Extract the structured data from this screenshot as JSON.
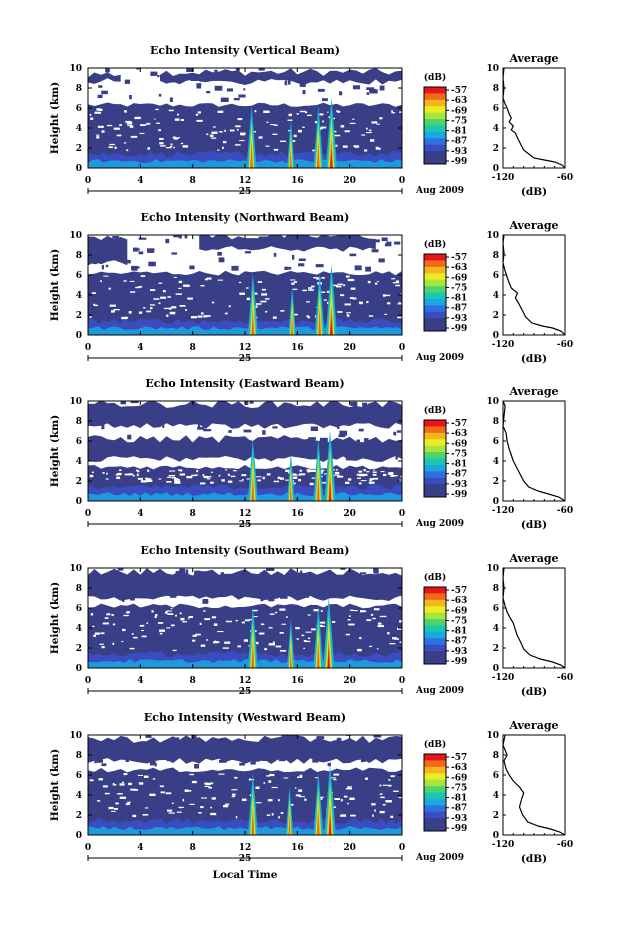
{
  "figure": {
    "xlabel_bottom": "Local Time",
    "date_label": "Aug 2009",
    "day_label": "25"
  },
  "colorbar": {
    "unit": "(dB)",
    "ticks": [
      "-57",
      "-63",
      "-69",
      "-75",
      "-81",
      "-87",
      "-93",
      "-99"
    ],
    "colors": [
      "#e8141c",
      "#f06a18",
      "#f4b51e",
      "#ecec24",
      "#a8e43a",
      "#4ed46c",
      "#1cc6b0",
      "#1aa8e0",
      "#2f6fe0",
      "#3b4bc0",
      "#383f86",
      "#383f86"
    ]
  },
  "average_panel": {
    "title": "Average",
    "xunit": "(dB)",
    "xticks": [
      "-120",
      "-60"
    ],
    "yticks": [
      "0",
      "2",
      "4",
      "6",
      "8",
      "10"
    ]
  },
  "chart_data": [
    {
      "type": "heatmap",
      "title": "Echo Intensity (Vertical Beam)",
      "ylabel": "Height (km)",
      "xticks": [
        "0",
        "4",
        "8",
        "12",
        "16",
        "20",
        "0"
      ],
      "yticks": [
        "0",
        "2",
        "4",
        "6",
        "8",
        "10"
      ],
      "xlim": [
        0,
        24
      ],
      "ylim": [
        0,
        10
      ],
      "base_top_km": 6.3,
      "upper_layer": [
        [
          0,
          2.5,
          8.7,
          9.4
        ],
        [
          5.5,
          24,
          8.6,
          9.6
        ]
      ],
      "convective_cells_hour": [
        12.5,
        15.5,
        17.6,
        18.6
      ],
      "average_profile": [
        [
          -60,
          0
        ],
        [
          -63,
          0.3
        ],
        [
          -70,
          0.6
        ],
        [
          -80,
          0.8
        ],
        [
          -90,
          1.0
        ],
        [
          -95,
          1.4
        ],
        [
          -100,
          1.8
        ],
        [
          -103,
          2.4
        ],
        [
          -106,
          3.0
        ],
        [
          -108,
          3.5
        ],
        [
          -112,
          3.8
        ],
        [
          -110,
          4.2
        ],
        [
          -114,
          4.6
        ],
        [
          -112,
          5.0
        ],
        [
          -114,
          5.4
        ],
        [
          -116,
          6.0
        ],
        [
          -118,
          6.4
        ],
        [
          -120,
          7.0
        ],
        [
          -119,
          8.0
        ],
        [
          -120,
          9.0
        ],
        [
          -119,
          10
        ]
      ]
    },
    {
      "type": "heatmap",
      "title": "Echo Intensity (Northward Beam)",
      "ylabel": "Height (km)",
      "xticks": [
        "0",
        "4",
        "8",
        "12",
        "16",
        "20",
        "0"
      ],
      "yticks": [
        "0",
        "2",
        "4",
        "6",
        "8",
        "10"
      ],
      "xlim": [
        0,
        24
      ],
      "ylim": [
        0,
        10
      ],
      "base_top_km": 6.2,
      "upper_layer": [
        [
          0,
          3,
          7.2,
          9.9
        ],
        [
          8.5,
          22,
          8.6,
          9.9
        ]
      ],
      "convective_cells_hour": [
        12.6,
        15.6,
        17.7,
        18.6
      ],
      "average_profile": [
        [
          -60,
          0
        ],
        [
          -64,
          0.4
        ],
        [
          -72,
          0.7
        ],
        [
          -82,
          0.9
        ],
        [
          -92,
          1.2
        ],
        [
          -98,
          1.8
        ],
        [
          -102,
          2.6
        ],
        [
          -105,
          3.2
        ],
        [
          -108,
          3.7
        ],
        [
          -106,
          4.2
        ],
        [
          -112,
          4.7
        ],
        [
          -114,
          5.2
        ],
        [
          -116,
          5.8
        ],
        [
          -118,
          6.4
        ],
        [
          -120,
          7.2
        ],
        [
          -119,
          8.2
        ],
        [
          -120,
          9.2
        ],
        [
          -119,
          10
        ]
      ]
    },
    {
      "type": "heatmap",
      "title": "Echo Intensity (Eastward Beam)",
      "ylabel": "Height (km)",
      "xticks": [
        "0",
        "4",
        "8",
        "12",
        "16",
        "20",
        "0"
      ],
      "yticks": [
        "0",
        "2",
        "4",
        "6",
        "8",
        "10"
      ],
      "xlim": [
        0,
        24
      ],
      "ylim": [
        0,
        10
      ],
      "base_top_km": 3.4,
      "upper_layer": [
        [
          0,
          24,
          4.2,
          6.2
        ],
        [
          0,
          24,
          7.5,
          9.7
        ]
      ],
      "convective_cells_hour": [
        12.6,
        15.5,
        17.6,
        18.5
      ],
      "average_profile": [
        [
          -60,
          0
        ],
        [
          -66,
          0.4
        ],
        [
          -76,
          0.7
        ],
        [
          -86,
          1.0
        ],
        [
          -95,
          1.4
        ],
        [
          -100,
          2.0
        ],
        [
          -104,
          2.8
        ],
        [
          -107,
          3.4
        ],
        [
          -110,
          4.0
        ],
        [
          -112,
          4.6
        ],
        [
          -114,
          5.2
        ],
        [
          -116,
          6.0
        ],
        [
          -117,
          6.8
        ],
        [
          -120,
          7.5
        ],
        [
          -119,
          8.5
        ],
        [
          -118,
          9.5
        ],
        [
          -120,
          10
        ]
      ]
    },
    {
      "type": "heatmap",
      "title": "Echo Intensity (Southward Beam)",
      "ylabel": "Height (km)",
      "xticks": [
        "0",
        "4",
        "8",
        "12",
        "16",
        "20",
        "0"
      ],
      "yticks": [
        "0",
        "2",
        "4",
        "6",
        "8",
        "10"
      ],
      "xlim": [
        0,
        24
      ],
      "ylim": [
        0,
        10
      ],
      "base_top_km": 6.2,
      "upper_layer": [
        [
          0,
          24,
          7.0,
          9.6
        ]
      ],
      "convective_cells_hour": [
        12.6,
        15.5,
        17.6,
        18.4
      ],
      "average_profile": [
        [
          -60,
          0
        ],
        [
          -64,
          0.3
        ],
        [
          -72,
          0.6
        ],
        [
          -84,
          0.9
        ],
        [
          -94,
          1.3
        ],
        [
          -100,
          1.9
        ],
        [
          -103,
          2.6
        ],
        [
          -106,
          3.2
        ],
        [
          -108,
          3.8
        ],
        [
          -110,
          4.5
        ],
        [
          -113,
          5.0
        ],
        [
          -116,
          5.6
        ],
        [
          -118,
          6.2
        ],
        [
          -120,
          7.0
        ],
        [
          -119,
          8.0
        ],
        [
          -120,
          9.0
        ],
        [
          -119,
          10
        ]
      ]
    },
    {
      "type": "heatmap",
      "title": "Echo Intensity (Westward Beam)",
      "ylabel": "Height (km)",
      "xticks": [
        "0",
        "4",
        "8",
        "12",
        "16",
        "20",
        "0"
      ],
      "yticks": [
        "0",
        "2",
        "4",
        "6",
        "8",
        "10"
      ],
      "xlim": [
        0,
        24
      ],
      "ylim": [
        0,
        10
      ],
      "base_top_km": 6.5,
      "upper_layer": [
        [
          0,
          24,
          7.4,
          9.6
        ]
      ],
      "convective_cells_hour": [
        12.6,
        15.4,
        17.6,
        18.5
      ],
      "average_profile": [
        [
          -60,
          0
        ],
        [
          -65,
          0.3
        ],
        [
          -74,
          0.6
        ],
        [
          -86,
          0.9
        ],
        [
          -96,
          1.3
        ],
        [
          -101,
          2.0
        ],
        [
          -104,
          2.8
        ],
        [
          -102,
          3.6
        ],
        [
          -100,
          4.2
        ],
        [
          -104,
          4.8
        ],
        [
          -110,
          5.4
        ],
        [
          -114,
          6.0
        ],
        [
          -117,
          6.6
        ],
        [
          -119,
          7.4
        ],
        [
          -116,
          8.0
        ],
        [
          -120,
          9.0
        ],
        [
          -118,
          10
        ]
      ]
    }
  ]
}
